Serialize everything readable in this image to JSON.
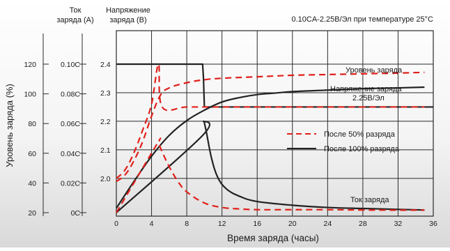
{
  "chart_data": {
    "type": "line",
    "title": "",
    "condition": "0.10CA-2.25В/Эл при температуре 25°C",
    "xlabel": "Время заряда (часы)",
    "xlim": [
      0,
      36
    ],
    "x_ticks": [
      "0",
      "4",
      "8",
      "12",
      "16",
      "20",
      "24",
      "28",
      "32",
      "36"
    ],
    "grid": true,
    "axes": {
      "capacity": {
        "label": "Уровень заряда (%)",
        "ticks": [
          "20",
          "40",
          "60",
          "80",
          "100",
          "120"
        ],
        "range": [
          20,
          120
        ]
      },
      "current": {
        "label_line1": "Ток",
        "label_line2": "заряда (A)",
        "ticks": [
          "0C",
          "0.02C",
          "0.04C",
          "0.06C",
          "0.08C",
          "0.10C"
        ],
        "range": [
          0,
          0.1
        ]
      },
      "voltage": {
        "label_line1": "Напряжение",
        "label_line2": "заряда (В)",
        "ticks": [
          "2.0",
          "2.1",
          "2.2",
          "2.3",
          "2.4"
        ],
        "range": [
          1.88,
          2.4
        ]
      }
    },
    "annotations": {
      "charge_level": "Уровень заряда",
      "voltage_line1": "Напряжение заряда",
      "voltage_line2": "2.25В/Эл",
      "current": "Ток заряда"
    },
    "legend": {
      "placement": "right",
      "items": [
        {
          "label": "После 50% разряда",
          "style": "dashed",
          "color": "#e0201b"
        },
        {
          "label": "После 100% разряда",
          "style": "solid",
          "color": "#222222"
        }
      ]
    },
    "series": [
      {
        "group": "После 100% разряда",
        "quantity": "voltage",
        "axis": "voltage",
        "x": [
          0,
          9.8,
          9.9,
          10,
          36
        ],
        "y": [
          2.4,
          2.4,
          2.35,
          2.25,
          2.25
        ]
      },
      {
        "group": "После 100% разряда",
        "quantity": "capacity",
        "axis": "capacity",
        "x": [
          0,
          2,
          4,
          6,
          8,
          10,
          12,
          14,
          16,
          18,
          20,
          24,
          28,
          32,
          35
        ],
        "y": [
          23,
          41,
          58,
          72,
          82,
          89,
          94.5,
          97.5,
          99.5,
          100.5,
          101.5,
          102.5,
          103.5,
          104,
          104.5
        ]
      },
      {
        "group": "После 100% разряда",
        "quantity": "current",
        "axis": "current",
        "x": [
          0,
          9.8,
          9.9,
          10.2,
          10.8,
          11.5,
          12.5,
          14,
          16,
          20,
          24,
          28,
          32,
          35
        ],
        "y": [
          0,
          0.052,
          0.0615,
          0.055,
          0.037,
          0.024,
          0.016,
          0.011,
          0.0075,
          0.005,
          0.0035,
          0.0028,
          0.0022,
          0.0018
        ]
      },
      {
        "group": "После 50% разряда",
        "quantity": "voltage",
        "axis": "voltage",
        "x": [
          0,
          1,
          2,
          3,
          4,
          4.8,
          5.2,
          8,
          12,
          16,
          20,
          24,
          28,
          32,
          35
        ],
        "y": [
          2.0,
          2.03,
          2.09,
          2.17,
          2.26,
          2.4,
          2.25,
          2.25,
          2.25,
          2.25,
          2.25,
          2.25,
          2.25,
          2.25,
          2.25
        ]
      },
      {
        "group": "После 50% разряда",
        "quantity": "capacity",
        "axis": "capacity",
        "x": [
          0,
          1,
          2,
          3,
          4,
          5,
          6,
          8,
          10,
          12,
          16,
          20,
          24,
          28,
          32,
          35
        ],
        "y": [
          41,
          45.5,
          55,
          68,
          85,
          99,
          104,
          107.5,
          109.5,
          110.5,
          111.5,
          112.5,
          113,
          113.5,
          114,
          114.5
        ]
      },
      {
        "group": "После 50% разряда",
        "quantity": "current",
        "axis": "current",
        "x": [
          0,
          4.6,
          4.8,
          5.2,
          6,
          7,
          8,
          10,
          12,
          14,
          16,
          20,
          24,
          28,
          32,
          35
        ],
        "y": [
          0,
          0.046,
          0.0465,
          0.041,
          0.031,
          0.021,
          0.014,
          0.0065,
          0.0035,
          0.0025,
          0.002,
          0.002,
          0.002,
          0.0018,
          0.0017,
          0.0017
        ]
      }
    ]
  }
}
